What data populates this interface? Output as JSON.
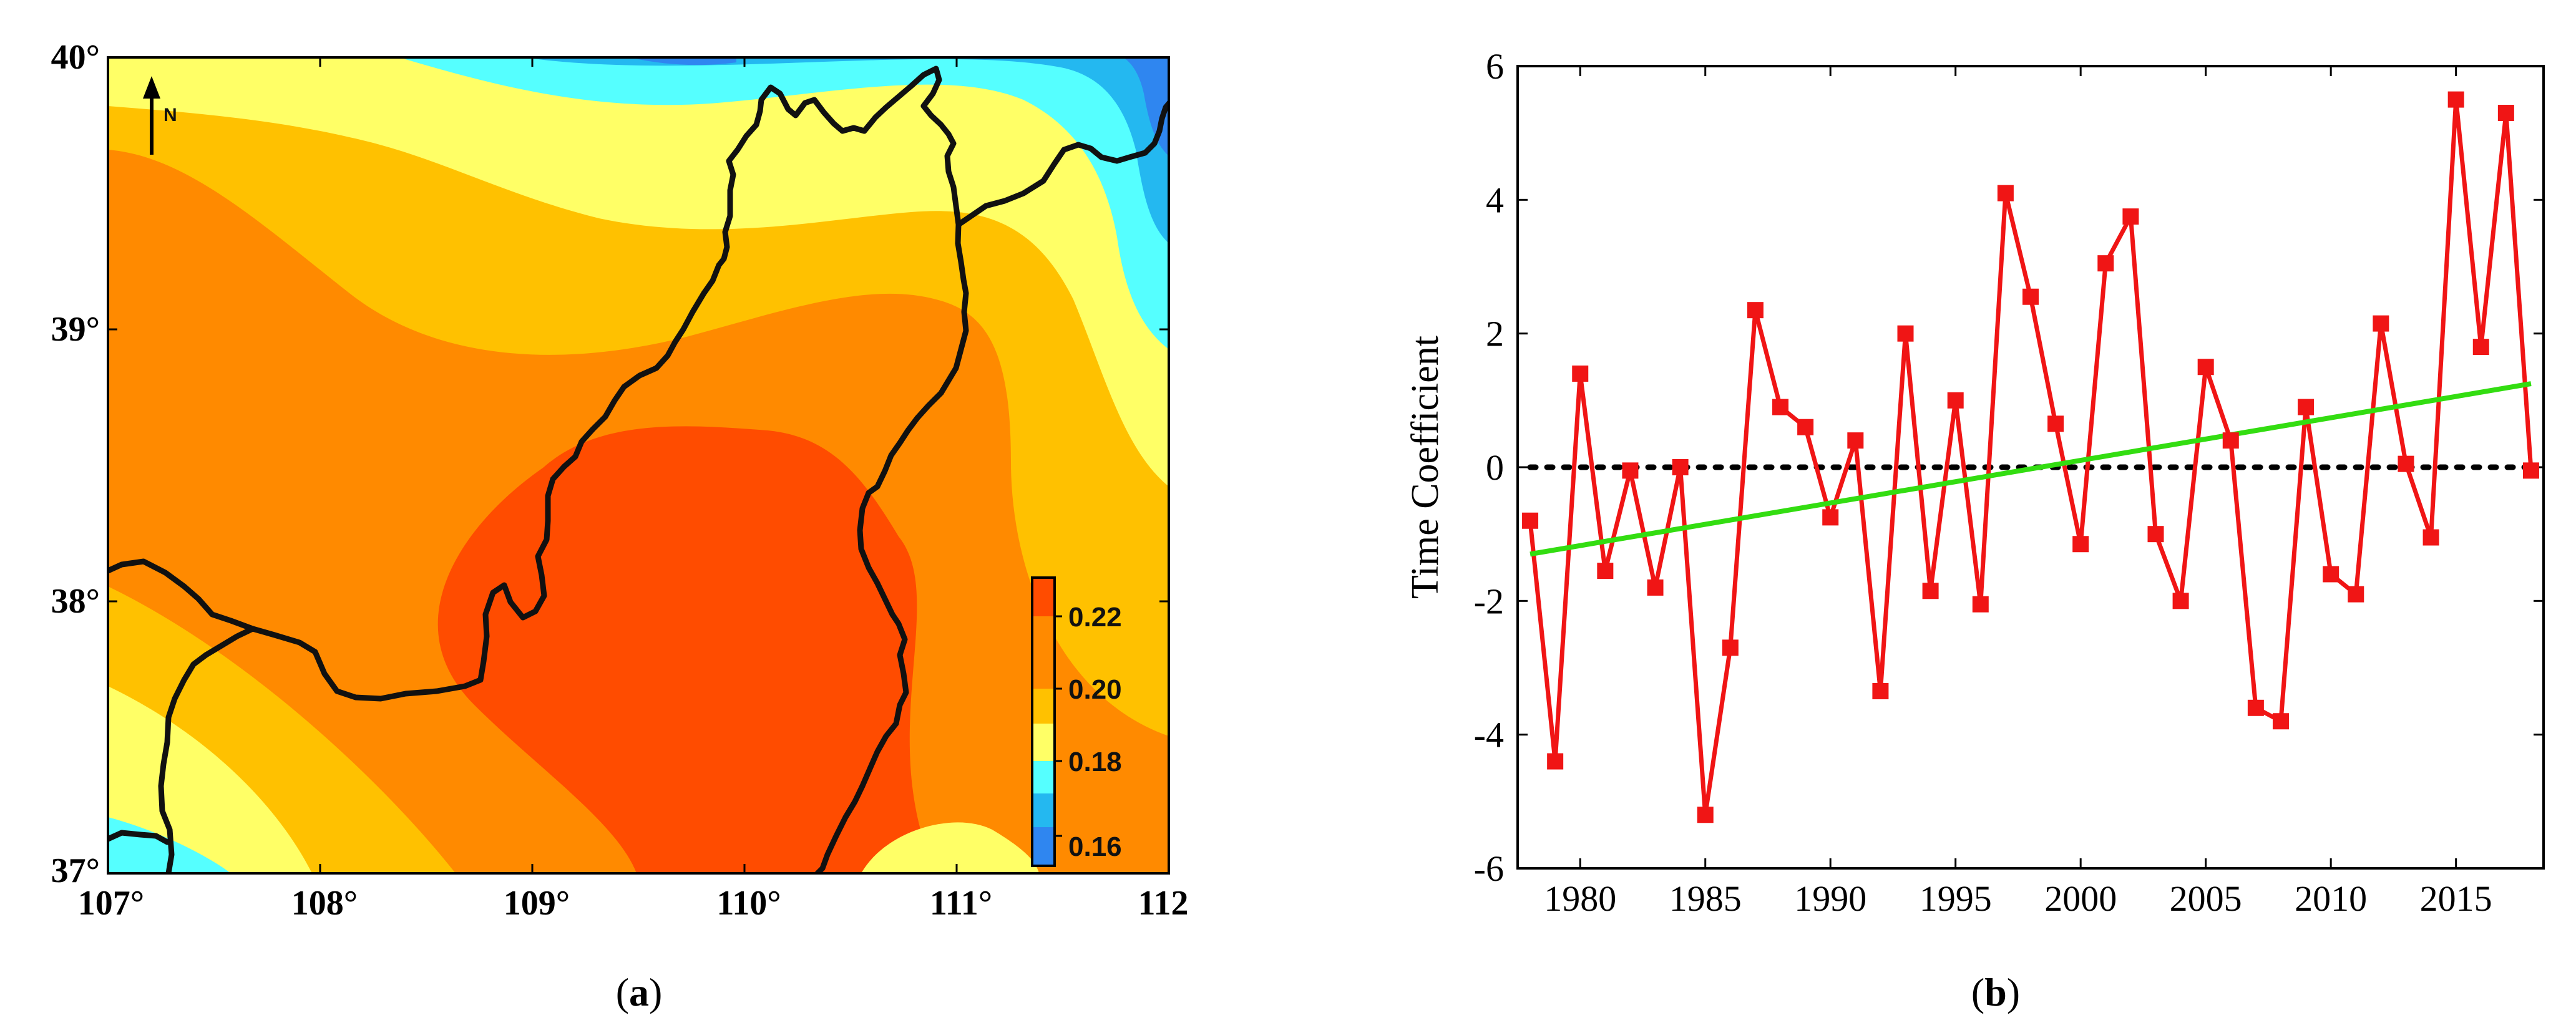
{
  "panel_a": {
    "caption": "(a)",
    "caption_letter": "a",
    "north_label": "N",
    "x_ticks": [
      "107°",
      "108°",
      "109°",
      "110°",
      "111°",
      "112"
    ],
    "y_ticks": [
      "37°",
      "38°",
      "39°",
      "40°"
    ],
    "colorbar": {
      "labels": [
        "0.16",
        "0.18",
        "0.20",
        "0.22"
      ],
      "colors": [
        "#2f86f0",
        "#24b8f0",
        "#55ffff",
        "#ffff66",
        "#ffc100",
        "#ff8a00",
        "#ff4c00"
      ]
    },
    "colors": {
      "blue": "#2f86f0",
      "lightblue": "#24b8f0",
      "cyan": "#55ffff",
      "yellow": "#ffff66",
      "orange": "#ffc100",
      "darkorange": "#ff8a00",
      "red": "#ff4c00",
      "border": "#111111"
    }
  },
  "chart_data": {
    "type": "line",
    "caption": "(b)",
    "caption_letter": "b",
    "title": "",
    "xlabel": "",
    "ylabel": "Time Coefficient",
    "xlim": [
      1977.5,
      2018.5
    ],
    "ylim": [
      -6,
      6
    ],
    "x_ticks": [
      1980,
      1985,
      1990,
      1995,
      2000,
      2005,
      2010,
      2015
    ],
    "y_ticks": [
      -6,
      -4,
      -2,
      0,
      2,
      4,
      6
    ],
    "series": [
      {
        "name": "Time Coefficient",
        "color": "#f01515",
        "marker": "square",
        "x": [
          1978,
          1979,
          1980,
          1981,
          1982,
          1983,
          1984,
          1985,
          1986,
          1987,
          1988,
          1989,
          1990,
          1991,
          1992,
          1993,
          1994,
          1995,
          1996,
          1997,
          1998,
          1999,
          2000,
          2001,
          2002,
          2003,
          2004,
          2005,
          2006,
          2007,
          2008,
          2009,
          2010,
          2011,
          2012,
          2013,
          2014,
          2015,
          2016,
          2017,
          2018
        ],
        "values": [
          -0.8,
          -4.4,
          1.4,
          -1.55,
          -0.05,
          -1.8,
          0.0,
          -5.2,
          -2.7,
          2.35,
          0.9,
          0.6,
          -0.75,
          0.4,
          -3.35,
          2.0,
          -1.85,
          1.0,
          -2.05,
          4.1,
          2.55,
          0.65,
          -1.15,
          3.05,
          3.75,
          -1.0,
          -2.0,
          1.5,
          0.4,
          -3.6,
          -3.8,
          0.9,
          -1.6,
          -1.9,
          2.15,
          0.05,
          -1.05,
          5.5,
          1.8,
          5.3,
          -0.05
        ]
      },
      {
        "name": "Linear trend",
        "color": "#33dd11",
        "x": [
          1978,
          2018
        ],
        "values": [
          -1.3,
          1.25
        ]
      },
      {
        "name": "Zero line",
        "color": "#000000",
        "style": "dotted",
        "x": [
          1978,
          2018
        ],
        "values": [
          0,
          0
        ]
      }
    ]
  }
}
